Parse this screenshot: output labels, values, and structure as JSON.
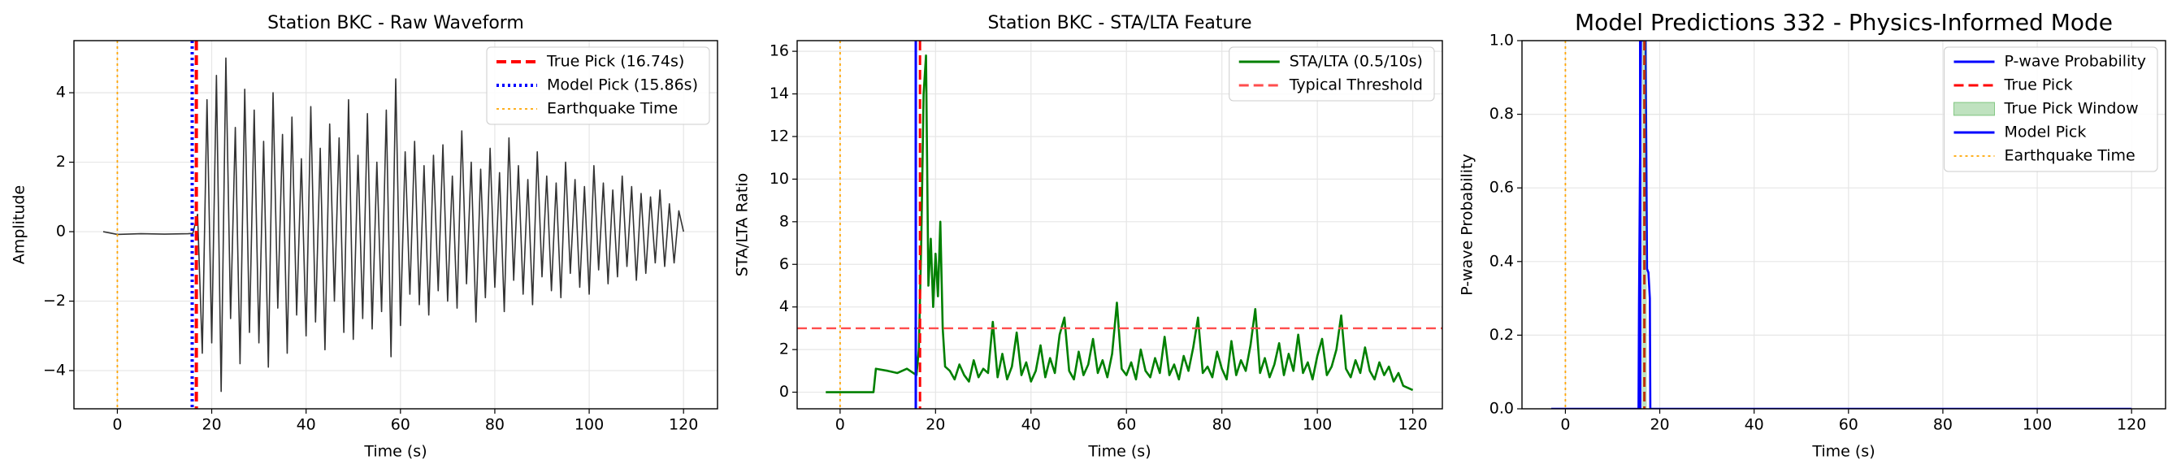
{
  "chart_data": [
    {
      "type": "line",
      "title": "Station BKC - Raw Waveform",
      "xlabel": "Time (s)",
      "ylabel": "Amplitude",
      "xlim": [
        -9.2,
        127.2
      ],
      "ylim": [
        -5.1,
        5.5
      ],
      "grid": true,
      "legend": "upper right",
      "xticks": [
        0,
        20,
        40,
        60,
        80,
        100,
        120
      ],
      "yticks": [
        {
          "value": -4,
          "label": "−4"
        },
        {
          "value": -2,
          "label": "−2"
        },
        0,
        2,
        4
      ],
      "series": [
        {
          "kind": "line",
          "color": "#333333",
          "x": [
            -3,
            0,
            5,
            10,
            15,
            16,
            17,
            18,
            19,
            20,
            21,
            22,
            23,
            24,
            25,
            26,
            27,
            28,
            29,
            30,
            31,
            32,
            33,
            34,
            35,
            36,
            37,
            38,
            39,
            40,
            41,
            42,
            43,
            44,
            45,
            46,
            47,
            48,
            49,
            50,
            51,
            52,
            53,
            54,
            55,
            56,
            57,
            58,
            59,
            60,
            61,
            62,
            63,
            64,
            65,
            66,
            67,
            68,
            69,
            70,
            71,
            72,
            73,
            74,
            75,
            76,
            77,
            78,
            79,
            80,
            81,
            82,
            83,
            84,
            85,
            86,
            87,
            88,
            89,
            90,
            91,
            92,
            93,
            94,
            95,
            96,
            97,
            98,
            99,
            100,
            101,
            102,
            103,
            104,
            105,
            106,
            107,
            108,
            109,
            110,
            111,
            112,
            113,
            114,
            115,
            116,
            117,
            118,
            119,
            120
          ],
          "values": [
            0,
            -0.08,
            -0.06,
            -0.07,
            -0.06,
            -0.05,
            0.5,
            -3.5,
            3.8,
            -3.2,
            4.5,
            -4.6,
            5.0,
            -2.5,
            3.0,
            -3.8,
            4.1,
            -2.9,
            3.5,
            -3.2,
            2.6,
            -3.9,
            4.0,
            -2.2,
            2.8,
            -3.5,
            3.3,
            -2.4,
            2.1,
            -3.0,
            3.6,
            -2.6,
            2.4,
            -3.4,
            3.1,
            -2.0,
            2.7,
            -2.9,
            3.8,
            -3.1,
            2.2,
            -2.5,
            3.4,
            -2.8,
            2.0,
            -2.3,
            3.5,
            -3.6,
            4.4,
            -2.7,
            2.3,
            -1.8,
            2.6,
            -2.1,
            1.9,
            -2.4,
            2.2,
            -1.7,
            2.5,
            -2.0,
            1.6,
            -2.2,
            2.9,
            -1.5,
            2.0,
            -2.6,
            1.8,
            -1.9,
            2.4,
            -1.6,
            1.7,
            -2.3,
            2.7,
            -1.4,
            1.9,
            -1.8,
            1.5,
            -2.1,
            2.3,
            -1.3,
            1.6,
            -1.7,
            1.4,
            -1.9,
            2.0,
            -1.2,
            1.5,
            -1.6,
            1.3,
            -1.8,
            1.9,
            -1.1,
            1.4,
            -1.5,
            1.2,
            -1.3,
            1.6,
            -1.0,
            1.3,
            -1.4,
            1.1,
            -1.2,
            1.0,
            -0.9,
            1.2,
            -1.0,
            0.8,
            -0.9,
            0.6,
            0.0
          ]
        },
        {
          "kind": "vline",
          "name": "True Pick (16.74s)",
          "x": 16.74,
          "color": "#ff0000",
          "style": "dashed"
        },
        {
          "kind": "vline",
          "name": "Model Pick (15.86s)",
          "x": 15.86,
          "color": "#0000ff",
          "style": "dotted"
        },
        {
          "kind": "vline",
          "name": "Earthquake Time",
          "x": 0,
          "color": "#ffa500",
          "style": "dotted"
        }
      ]
    },
    {
      "type": "line",
      "title": "Station BKC - STA/LTA Feature",
      "xlabel": "Time (s)",
      "ylabel": "STA/LTA Ratio",
      "xlim": [
        -9.0,
        126.2
      ],
      "ylim": [
        -0.78,
        16.5
      ],
      "grid": true,
      "legend": "upper right",
      "xticks": [
        0,
        20,
        40,
        60,
        80,
        100,
        120
      ],
      "yticks": [
        0,
        2,
        4,
        6,
        8,
        10,
        12,
        14,
        16
      ],
      "series": [
        {
          "kind": "line",
          "name": "STA/LTA (0.5/10s)",
          "color": "#008000",
          "x": [
            -3,
            7,
            7.5,
            10,
            12,
            14,
            16,
            16.5,
            17,
            17.5,
            18,
            18.5,
            19,
            19.5,
            20,
            20.5,
            21,
            21.5,
            22,
            23,
            24,
            25,
            26,
            27,
            28,
            29,
            30,
            31,
            32,
            33,
            34,
            35,
            36,
            37,
            38,
            39,
            40,
            41,
            42,
            43,
            44,
            45,
            46,
            47,
            48,
            49,
            50,
            51,
            52,
            53,
            54,
            55,
            56,
            57,
            58,
            59,
            60,
            61,
            62,
            63,
            64,
            65,
            66,
            67,
            68,
            69,
            70,
            71,
            72,
            73,
            74,
            75,
            76,
            77,
            78,
            79,
            80,
            81,
            82,
            83,
            84,
            85,
            86,
            87,
            88,
            89,
            90,
            91,
            92,
            93,
            94,
            95,
            96,
            97,
            98,
            99,
            100,
            101,
            102,
            103,
            104,
            105,
            106,
            107,
            108,
            109,
            110,
            111,
            112,
            113,
            114,
            115,
            116,
            117,
            118,
            119,
            120
          ],
          "values": [
            0,
            0,
            1.1,
            1.0,
            0.9,
            1.1,
            0.8,
            2,
            7,
            14,
            15.8,
            5,
            7.2,
            4,
            6.5,
            4.5,
            8,
            3,
            1.2,
            1.0,
            0.6,
            1.3,
            0.8,
            0.5,
            1.5,
            0.7,
            1.1,
            0.9,
            3.3,
            0.7,
            1.8,
            0.6,
            1.2,
            2.8,
            0.8,
            1.4,
            0.5,
            1.0,
            2.2,
            0.7,
            1.6,
            0.9,
            2.7,
            3.5,
            1.0,
            0.6,
            1.9,
            0.8,
            1.3,
            2.5,
            0.9,
            1.5,
            0.7,
            1.8,
            4.2,
            1.1,
            0.8,
            1.4,
            0.6,
            2.0,
            1.0,
            0.7,
            1.6,
            0.9,
            2.6,
            0.8,
            1.3,
            0.6,
            1.7,
            1.0,
            2.1,
            3.5,
            0.9,
            1.2,
            0.7,
            1.9,
            1.1,
            0.6,
            2.4,
            0.8,
            1.5,
            1.0,
            2.2,
            3.9,
            0.9,
            1.6,
            0.7,
            1.3,
            2.3,
            0.8,
            1.8,
            1.0,
            2.7,
            0.9,
            1.4,
            0.6,
            1.7,
            2.5,
            0.8,
            1.2,
            2.0,
            3.6,
            1.1,
            0.7,
            1.5,
            0.9,
            2.1,
            1.0,
            0.6,
            1.4,
            0.8,
            1.2,
            0.5,
            0.9,
            0.3,
            0.2,
            0.1
          ]
        },
        {
          "kind": "hline",
          "name": "Typical Threshold",
          "y": 3,
          "color": "#ff4d4d",
          "style": "dashed"
        },
        {
          "kind": "vline",
          "x": 15.86,
          "color": "#0000ff",
          "style": "solid"
        },
        {
          "kind": "vline",
          "x": 16.74,
          "color": "#ff0000",
          "style": "dashed"
        },
        {
          "kind": "vline",
          "x": 0,
          "color": "#ffa500",
          "style": "dotted"
        }
      ]
    },
    {
      "type": "line",
      "title": "Model Predictions 332 - Physics-Informed Mode",
      "xlabel": "Time (s)",
      "ylabel": "P-wave Probability",
      "xlim": [
        -9.2,
        127.2
      ],
      "ylim": [
        0,
        1
      ],
      "grid": true,
      "legend": "upper right",
      "xticks": [
        0,
        20,
        40,
        60,
        80,
        100,
        120
      ],
      "yticks": [
        {
          "value": 0,
          "label": "0.0"
        },
        {
          "value": 0.2,
          "label": "0.2"
        },
        {
          "value": 0.4,
          "label": "0.4"
        },
        {
          "value": 0.6,
          "label": "0.6"
        },
        {
          "value": 0.8,
          "label": "0.8"
        },
        {
          "value": 1,
          "label": "1.0"
        }
      ],
      "series": [
        {
          "kind": "line",
          "name": "P-wave Probability",
          "color": "#0000ff",
          "x": [
            -3,
            15,
            15.5,
            15.6,
            16,
            16.5,
            17,
            17.3,
            17.6,
            17.9,
            18,
            120
          ],
          "values": [
            0,
            0,
            0,
            0.28,
            1,
            1,
            1,
            0.38,
            0.37,
            0.3,
            0,
            0
          ]
        },
        {
          "kind": "vline",
          "name": "True Pick",
          "x": 16.74,
          "color": "#ff0000",
          "style": "dashed"
        },
        {
          "kind": "span",
          "name": "True Pick Window",
          "x": [
            16.24,
            17.24
          ],
          "color": "#2ca02c"
        },
        {
          "kind": "vline",
          "name": "Model Pick",
          "x": 15.86,
          "color": "#0000ff",
          "style": "solid"
        },
        {
          "kind": "vline",
          "name": "Earthquake Time",
          "x": 0,
          "color": "#ffa500",
          "style": "dotted"
        }
      ]
    }
  ]
}
